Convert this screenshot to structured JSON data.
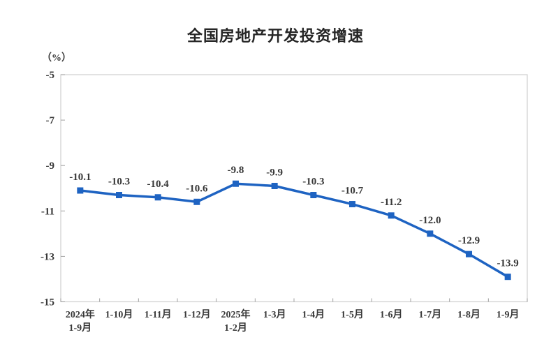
{
  "chart_data": {
    "type": "line",
    "title": "全国房地产开发投资增速",
    "unit_label": "（%）",
    "categories": [
      "2024年\n1-9月",
      "1-10月",
      "1-11月",
      "1-12月",
      "2025年\n1-2月",
      "1-3月",
      "1-4月",
      "1-5月",
      "1-6月",
      "1-7月",
      "1-8月",
      "1-9月"
    ],
    "values": [
      -10.1,
      -10.3,
      -10.4,
      -10.6,
      -9.8,
      -9.9,
      -10.3,
      -10.7,
      -11.2,
      -12.0,
      -12.9,
      -13.9
    ],
    "yticks": [
      -5,
      -7,
      -9,
      -11,
      -13,
      -15
    ],
    "ylim": [
      -15,
      -5
    ],
    "xlabel": "",
    "ylabel": "（%）",
    "grid": false,
    "legend_position": "none",
    "line_color": "#1e63c2",
    "marker": "square",
    "label_decimals": 1,
    "axis_color": "#cfcfcf",
    "tick_color": "#a0a0a0",
    "text_color": "#383838"
  }
}
